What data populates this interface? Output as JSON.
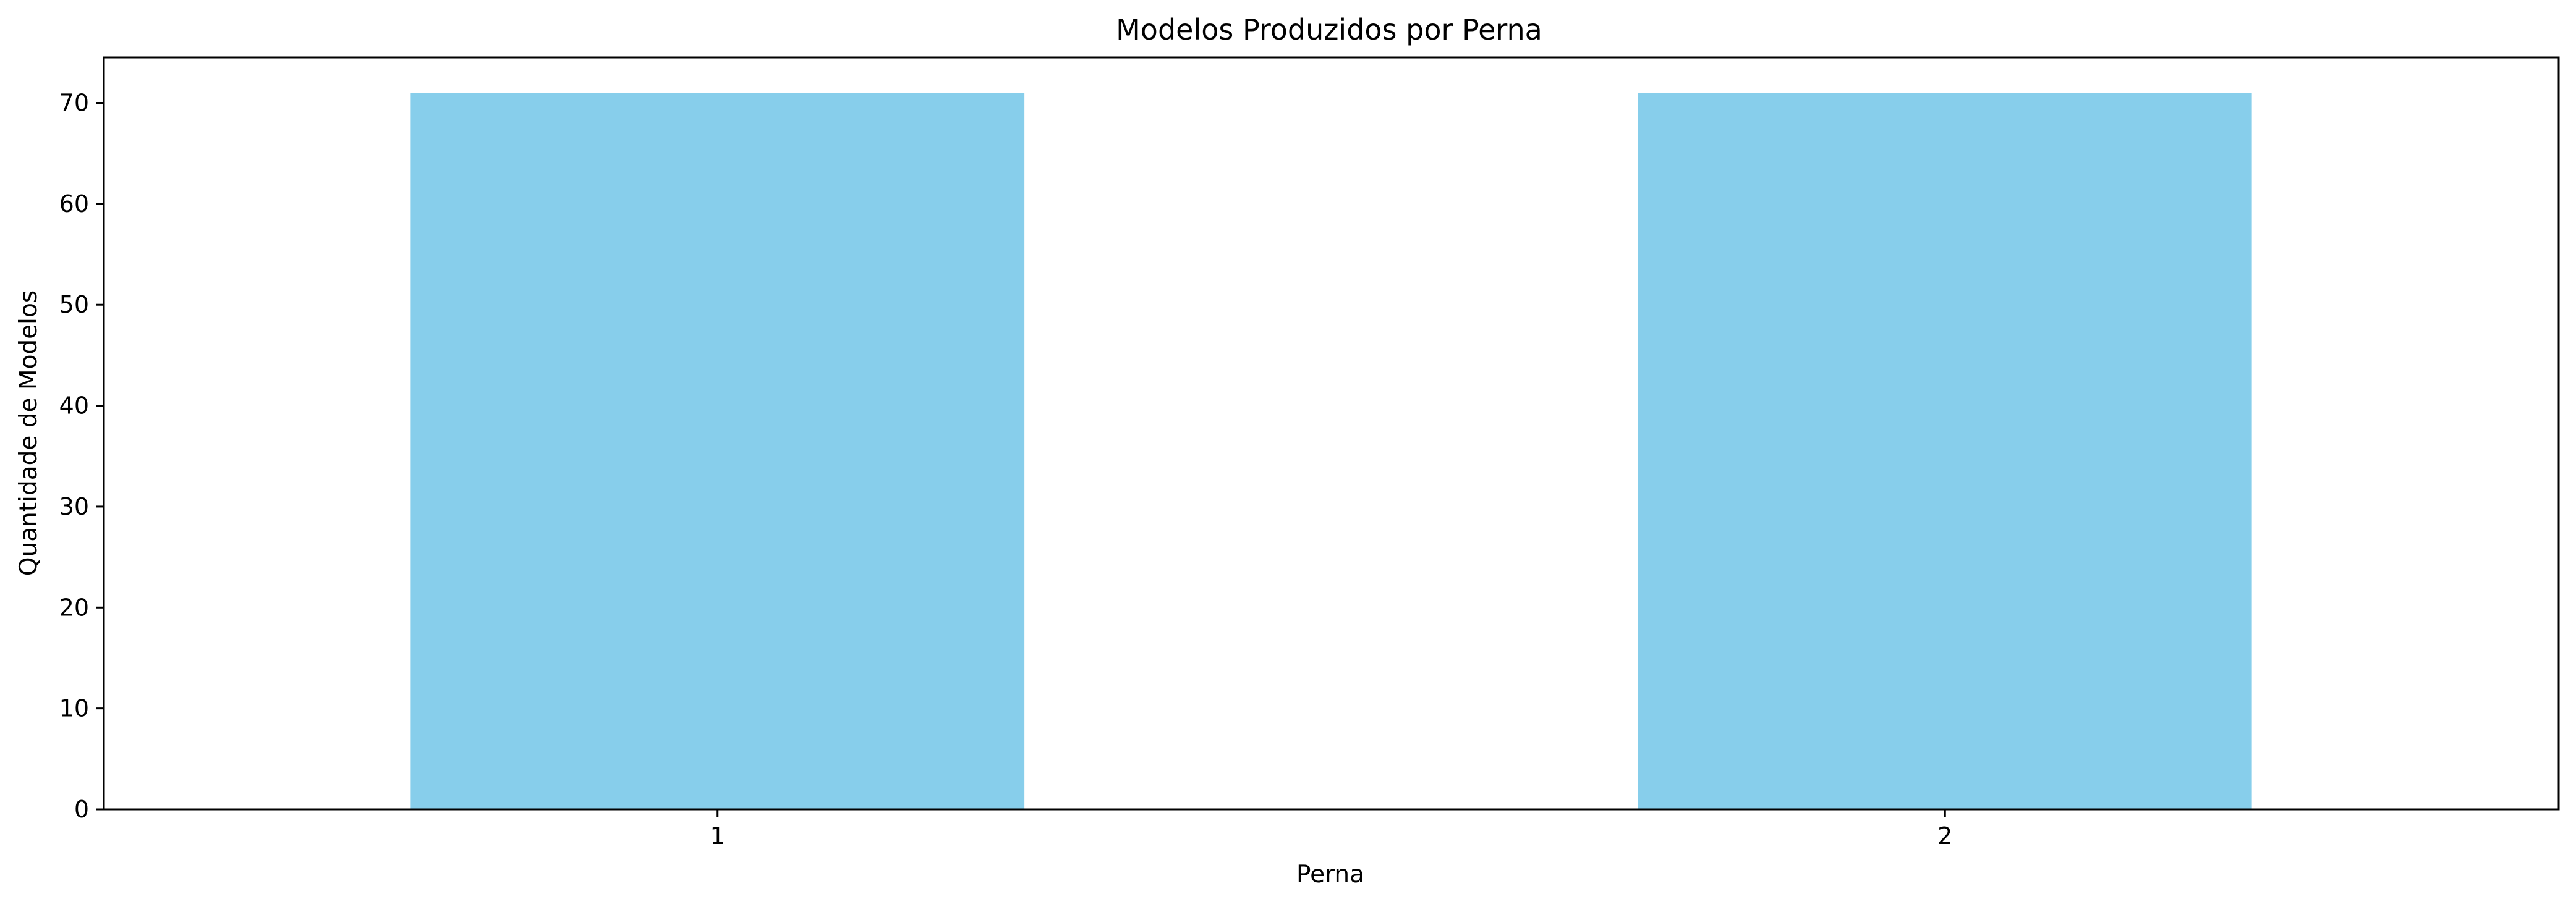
{
  "chart_data": {
    "type": "bar",
    "title": "Modelos Produzidos por Perna",
    "xlabel": "Perna",
    "ylabel": "Quantidade de Modelos",
    "categories": [
      "1",
      "2"
    ],
    "values": [
      71,
      71
    ],
    "ylim": [
      0,
      74.5
    ],
    "yticks": [
      0,
      10,
      20,
      30,
      40,
      50,
      60,
      70
    ],
    "ytick_labels": [
      "0",
      "10",
      "20",
      "30",
      "40",
      "50",
      "60",
      "70"
    ],
    "grid": false,
    "legend": "none",
    "bar_color": "#87CEEB",
    "axis_color": "#000000"
  }
}
